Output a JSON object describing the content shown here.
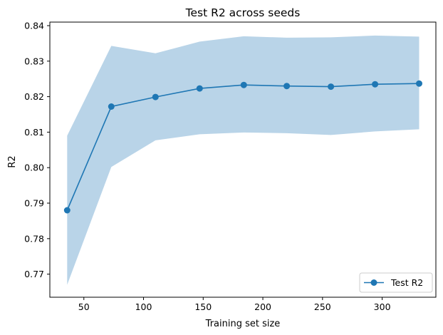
{
  "chart_data": {
    "type": "line",
    "title": "Test R2 across seeds",
    "xlabel": "Training set size",
    "ylabel": "R2",
    "xlim": [
      21.5,
      345
    ],
    "ylim": [
      0.7635,
      0.841
    ],
    "x_ticks": [
      50,
      100,
      150,
      200,
      250,
      300
    ],
    "x_tick_labels": [
      "50",
      "100",
      "150",
      "200",
      "250",
      "300"
    ],
    "y_ticks": [
      0.77,
      0.78,
      0.79,
      0.8,
      0.81,
      0.82,
      0.83,
      0.84
    ],
    "y_tick_labels": [
      "0.77",
      "0.78",
      "0.79",
      "0.80",
      "0.81",
      "0.82",
      "0.83",
      "0.84"
    ],
    "grid": false,
    "legend_position": "bottom-right",
    "series": [
      {
        "name": "Test R2",
        "color": "#1f77b4",
        "marker": "circle",
        "x": [
          36,
          73,
          110,
          147,
          184,
          220,
          257,
          294,
          331
        ],
        "values": [
          0.788,
          0.8172,
          0.8199,
          0.8223,
          0.8233,
          0.823,
          0.8228,
          0.8235,
          0.8237
        ],
        "band_upper": [
          0.809,
          0.8343,
          0.8322,
          0.8355,
          0.837,
          0.8366,
          0.8367,
          0.8372,
          0.8369
        ],
        "band_lower": [
          0.767,
          0.8002,
          0.8077,
          0.8094,
          0.8099,
          0.8097,
          0.8092,
          0.8102,
          0.8108
        ],
        "band_color": "#b9d4e8"
      }
    ]
  }
}
